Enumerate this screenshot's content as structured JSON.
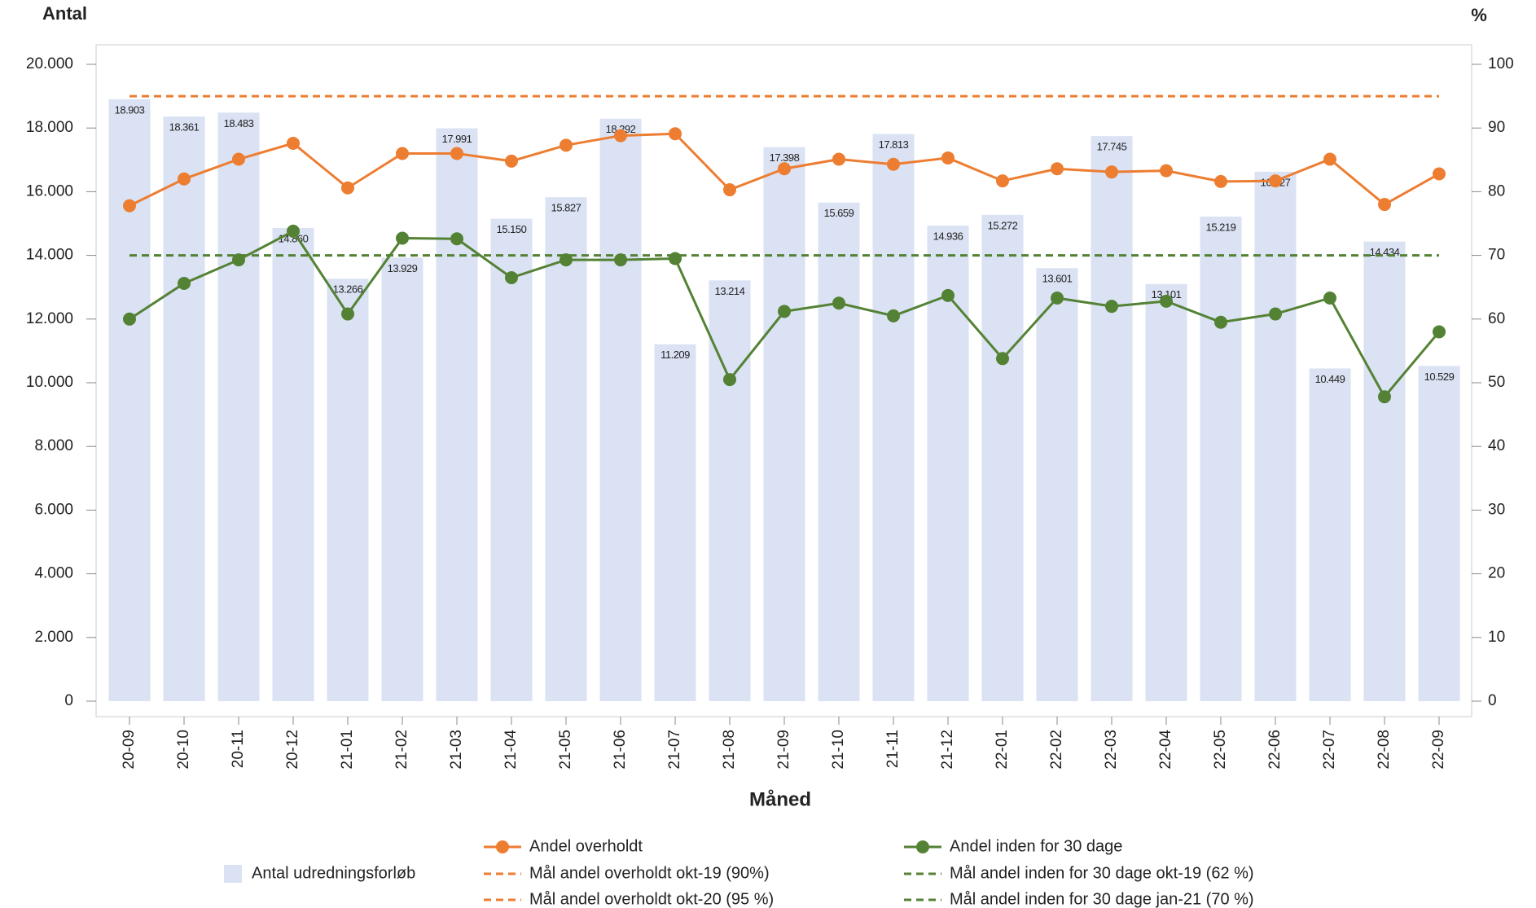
{
  "chart_data": {
    "type": "bar-line",
    "y_label": "Antal",
    "y2_label": "%",
    "x_label": "Måned",
    "categories": [
      "20-09",
      "20-10",
      "20-11",
      "20-12",
      "21-01",
      "21-02",
      "21-03",
      "21-04",
      "21-05",
      "21-06",
      "21-07",
      "21-08",
      "21-09",
      "21-10",
      "21-11",
      "21-12",
      "22-01",
      "22-02",
      "22-03",
      "22-04",
      "22-05",
      "22-06",
      "22-07",
      "22-08",
      "22-09"
    ],
    "ylim": [
      0,
      20000
    ],
    "yticks": [
      {
        "value": 0,
        "label": "0"
      },
      {
        "value": 2000,
        "label": "2.000"
      },
      {
        "value": 4000,
        "label": "4.000"
      },
      {
        "value": 6000,
        "label": "6.000"
      },
      {
        "value": 8000,
        "label": "8.000"
      },
      {
        "value": 10000,
        "label": "10.000"
      },
      {
        "value": 12000,
        "label": "12.000"
      },
      {
        "value": 14000,
        "label": "14.000"
      },
      {
        "value": 16000,
        "label": "16.000"
      },
      {
        "value": 18000,
        "label": "18.000"
      },
      {
        "value": 20000,
        "label": "20.000"
      }
    ],
    "y2lim": [
      0,
      100
    ],
    "y2ticks": [
      0,
      10,
      20,
      30,
      40,
      50,
      60,
      70,
      80,
      90,
      100
    ],
    "legend_position": "bottom",
    "series": [
      {
        "name": "Antal udredningsforløb",
        "type": "bar",
        "color": "#dae2f3",
        "values": [
          18903,
          18361,
          18483,
          14860,
          13266,
          13929,
          17991,
          15150,
          15827,
          18292,
          11209,
          13214,
          17398,
          15659,
          17813,
          14936,
          15272,
          13601,
          17745,
          13101,
          15219,
          16627,
          10449,
          14434,
          10529
        ],
        "value_labels": [
          "18.903",
          "18.361",
          "18.483",
          "14.860",
          "13.266",
          "13.929",
          "17.991",
          "15.150",
          "15.827",
          "18.292",
          "11.209",
          "13.214",
          "17.398",
          "15.659",
          "17.813",
          "14.936",
          "15.272",
          "13.601",
          "17.745",
          "13.101",
          "15.219",
          "16.627",
          "10.449",
          "14.434",
          "10.529"
        ]
      },
      {
        "name": "Andel overholdt",
        "type": "line",
        "axis": "y2",
        "color": "#ed7d31",
        "values": [
          77.8,
          82.0,
          85.1,
          87.6,
          80.6,
          86.0,
          86.0,
          84.8,
          87.3,
          88.8,
          89.1,
          80.3,
          83.6,
          85.1,
          84.3,
          85.3,
          81.7,
          83.6,
          83.1,
          83.3,
          81.6,
          81.7,
          85.1,
          78.0,
          82.8
        ]
      },
      {
        "name": "Mål andel overholdt okt-19 (90%)",
        "type": "target",
        "axis": "y2",
        "color": "#ed7d31"
      },
      {
        "name": "Mål andel overholdt okt-20 (95 %)",
        "type": "target",
        "axis": "y2",
        "color": "#ed7d31",
        "value": 95
      },
      {
        "name": "Andel inden for 30 dage",
        "type": "line",
        "axis": "y2",
        "color": "#548235",
        "values": [
          60.0,
          65.6,
          69.3,
          73.8,
          60.8,
          72.7,
          72.6,
          66.5,
          69.3,
          69.3,
          69.5,
          50.5,
          61.2,
          62.5,
          60.5,
          63.7,
          53.8,
          63.3,
          62.0,
          62.8,
          59.5,
          60.8,
          63.3,
          47.8,
          58.0
        ]
      },
      {
        "name": "Mål andel inden for 30 dage okt-19 (62 %)",
        "type": "target",
        "axis": "y2",
        "color": "#548235"
      },
      {
        "name": "Mål andel inden for 30 dage jan-21 (70 %)",
        "type": "target",
        "axis": "y2",
        "color": "#548235",
        "value": 70
      }
    ]
  }
}
